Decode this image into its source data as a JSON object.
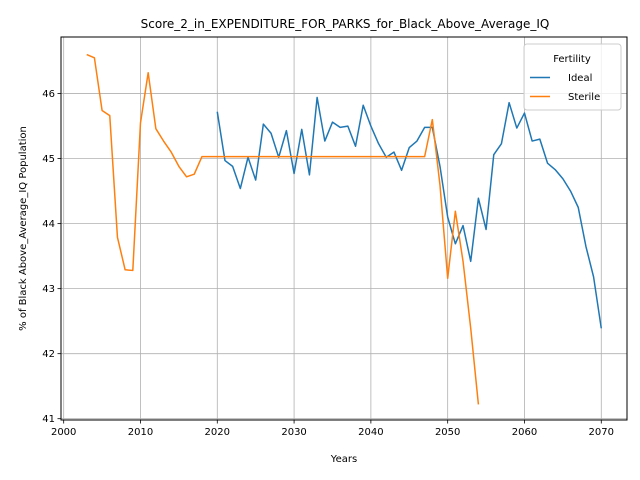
{
  "chart_data": {
    "type": "line",
    "title": "Score_2_in_EXPENDITURE_FOR_PARKS_for_Black_Above_Average_IQ",
    "xlabel": "Years",
    "ylabel": "% of Black Above_Average_IQ Population",
    "xlim": [
      1999.65,
      2073.35
    ],
    "ylim": [
      40.98,
      46.87
    ],
    "xticks": [
      2000,
      2010,
      2020,
      2030,
      2040,
      2050,
      2060,
      2070
    ],
    "yticks": [
      41,
      42,
      43,
      44,
      45,
      46
    ],
    "grid": true,
    "legend": {
      "title": "Fertility",
      "position": "top-right"
    },
    "series": [
      {
        "name": "Ideal",
        "color": "#1f77b4",
        "x": [
          2020,
          2021,
          2022,
          2023,
          2024,
          2025,
          2026,
          2027,
          2028,
          2029,
          2030,
          2031,
          2032,
          2033,
          2034,
          2035,
          2036,
          2037,
          2038,
          2039,
          2040,
          2041,
          2042,
          2043,
          2044,
          2045,
          2046,
          2047,
          2048,
          2049,
          2050,
          2051,
          2052,
          2053,
          2054,
          2055,
          2056,
          2057,
          2058,
          2059,
          2060,
          2061,
          2062,
          2063,
          2064,
          2065,
          2066,
          2067,
          2068,
          2069,
          2070
        ],
        "values": [
          45.72,
          44.97,
          44.88,
          44.54,
          45.02,
          44.67,
          45.53,
          45.39,
          45.02,
          45.43,
          44.77,
          45.45,
          44.75,
          45.94,
          45.27,
          45.56,
          45.48,
          45.5,
          45.19,
          45.82,
          45.5,
          45.23,
          45.02,
          45.1,
          44.82,
          45.17,
          45.27,
          45.48,
          45.48,
          44.88,
          44.1,
          43.69,
          43.97,
          43.42,
          44.39,
          43.91,
          45.06,
          45.23,
          45.86,
          45.47,
          45.7,
          45.27,
          45.3,
          44.93,
          44.83,
          44.69,
          44.5,
          44.25,
          43.65,
          43.18,
          42.39
        ]
      },
      {
        "name": "Sterile",
        "color": "#ff7f0e",
        "x": [
          2003,
          2004,
          2005,
          2006,
          2007,
          2008,
          2009,
          2010,
          2011,
          2012,
          2013,
          2014,
          2015,
          2016,
          2017,
          2018,
          2019,
          2020,
          2021,
          2022,
          2023,
          2024,
          2025,
          2026,
          2027,
          2028,
          2029,
          2030,
          2031,
          2032,
          2033,
          2034,
          2035,
          2036,
          2037,
          2038,
          2039,
          2040,
          2041,
          2042,
          2043,
          2044,
          2045,
          2046,
          2047,
          2048,
          2049,
          2050,
          2051,
          2052,
          2053,
          2054
        ],
        "values": [
          46.6,
          46.55,
          45.74,
          45.66,
          43.79,
          43.29,
          43.28,
          45.55,
          46.32,
          45.46,
          45.27,
          45.1,
          44.88,
          44.72,
          44.76,
          45.03,
          45.03,
          45.03,
          45.03,
          45.03,
          45.03,
          45.03,
          45.03,
          45.03,
          45.03,
          45.03,
          45.03,
          45.03,
          45.03,
          45.03,
          45.03,
          45.03,
          45.03,
          45.03,
          45.03,
          45.03,
          45.03,
          45.03,
          45.03,
          45.03,
          45.03,
          45.03,
          45.03,
          45.03,
          45.03,
          45.6,
          44.59,
          43.16,
          44.19,
          43.42,
          42.39,
          41.22
        ]
      }
    ]
  }
}
